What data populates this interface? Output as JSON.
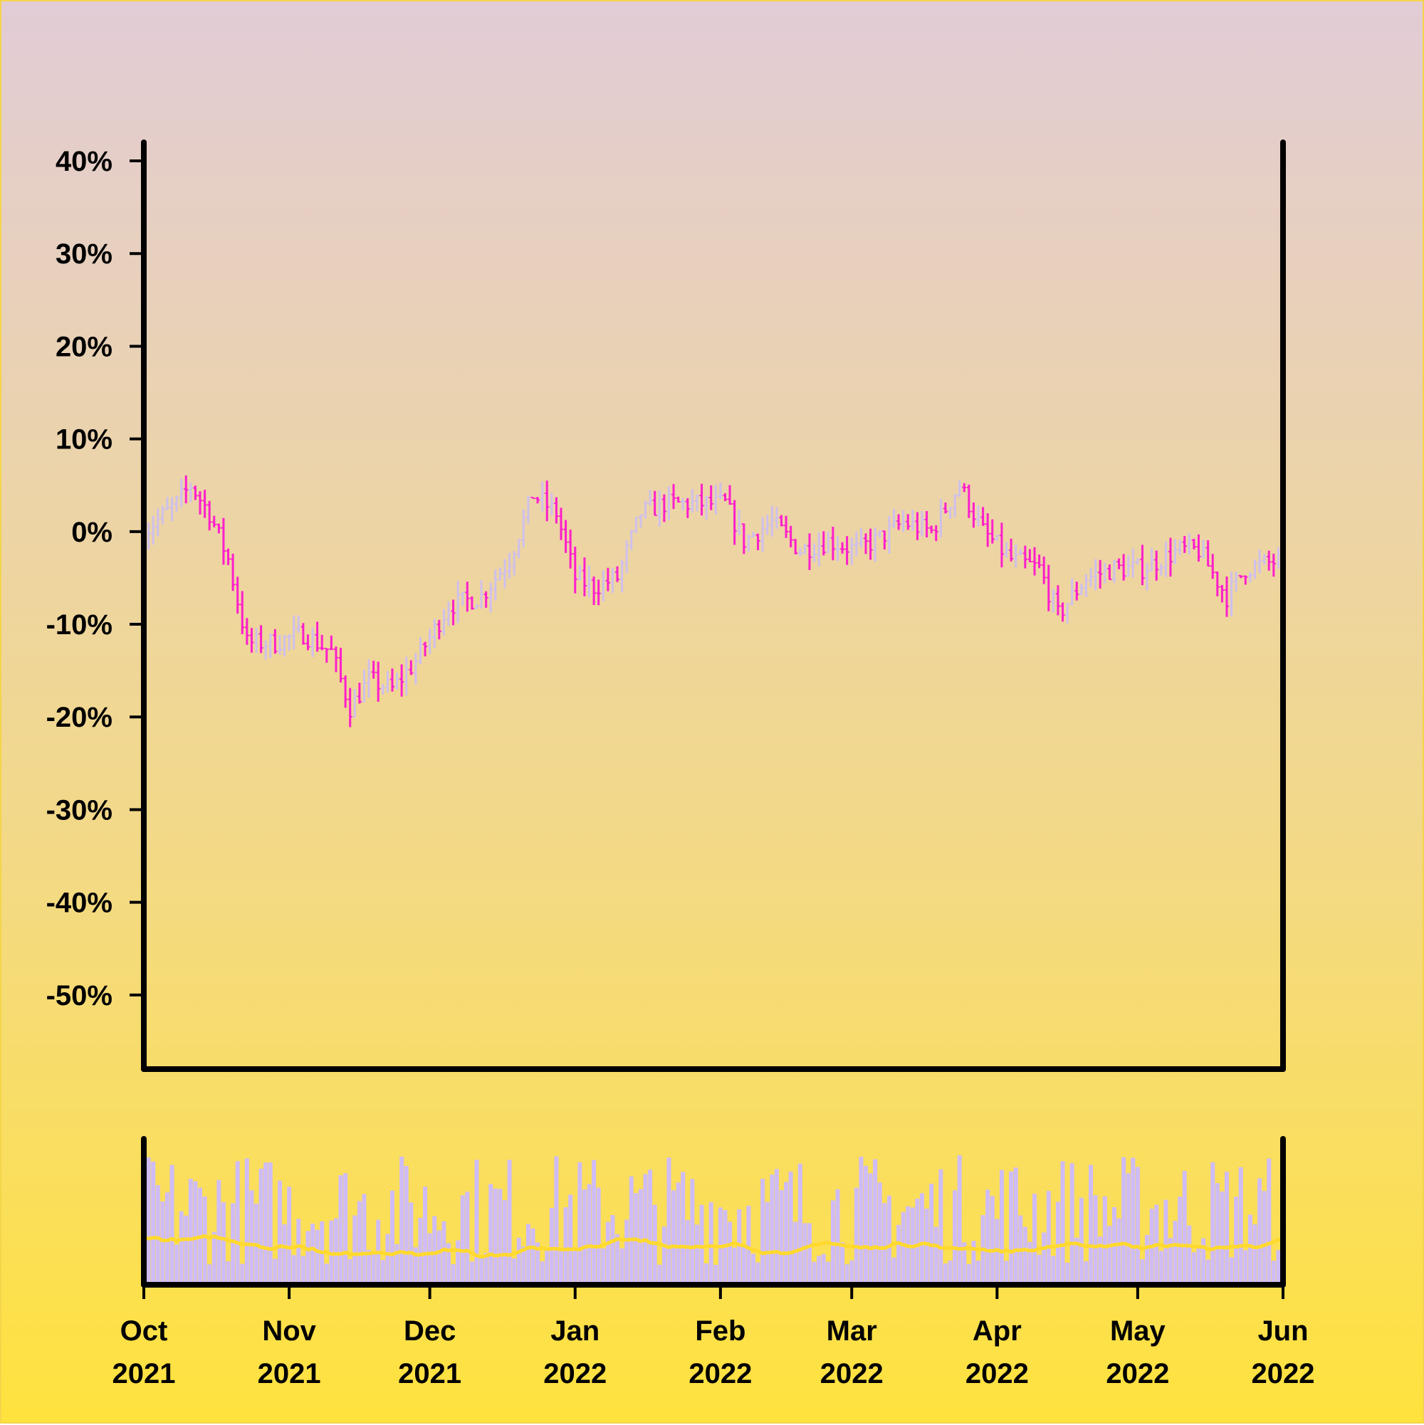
{
  "chart_data": {
    "type": "ohlc",
    "title": "",
    "xlabel": "",
    "ylabel": "",
    "y_unit": "%",
    "ylim": [
      -58,
      42
    ],
    "grid": false,
    "legend": "none",
    "x_range": [
      "2021-10-01",
      "2022-06-01"
    ],
    "y_ticks": [
      {
        "value": 40,
        "label": "40%"
      },
      {
        "value": 30,
        "label": "30%"
      },
      {
        "value": 20,
        "label": "20%"
      },
      {
        "value": 10,
        "label": "10%"
      },
      {
        "value": 0,
        "label": "0%"
      },
      {
        "value": -10,
        "label": "-10%"
      },
      {
        "value": -20,
        "label": "-20%"
      },
      {
        "value": -30,
        "label": "-30%"
      },
      {
        "value": -40,
        "label": "-40%"
      },
      {
        "value": -50,
        "label": "-50%"
      }
    ],
    "x_ticks": [
      {
        "date": "2021-10-01",
        "month": "Oct",
        "year": "2021"
      },
      {
        "date": "2021-11-01",
        "month": "Nov",
        "year": "2021"
      },
      {
        "date": "2021-12-01",
        "month": "Dec",
        "year": "2021"
      },
      {
        "date": "2022-01-01",
        "month": "Jan",
        "year": "2022"
      },
      {
        "date": "2022-02-01",
        "month": "Feb",
        "year": "2022"
      },
      {
        "date": "2022-03-01",
        "month": "Mar",
        "year": "2022"
      },
      {
        "date": "2022-04-01",
        "month": "Apr",
        "year": "2022"
      },
      {
        "date": "2022-05-01",
        "month": "May",
        "year": "2022"
      },
      {
        "date": "2022-06-01",
        "month": "Jun",
        "year": "2022"
      }
    ],
    "close_path": [
      [
        "2021-10-01",
        0
      ],
      [
        "2021-10-08",
        3
      ],
      [
        "2021-10-11",
        5
      ],
      [
        "2021-10-15",
        2
      ],
      [
        "2021-10-19",
        -3
      ],
      [
        "2021-10-23",
        -12
      ],
      [
        "2021-10-29",
        -12
      ],
      [
        "2021-11-04",
        -11
      ],
      [
        "2021-11-10",
        -13
      ],
      [
        "2021-11-14",
        -19
      ],
      [
        "2021-11-18",
        -16
      ],
      [
        "2021-11-23",
        -17
      ],
      [
        "2021-11-28",
        -14
      ],
      [
        "2021-12-05",
        -8
      ],
      [
        "2021-12-12",
        -7
      ],
      [
        "2021-12-18",
        -3
      ],
      [
        "2021-12-23",
        4
      ],
      [
        "2021-12-28",
        2
      ],
      [
        "2022-01-01",
        -5
      ],
      [
        "2022-01-05",
        -6
      ],
      [
        "2022-01-10",
        -5
      ],
      [
        "2022-01-15",
        2
      ],
      [
        "2022-01-20",
        3
      ],
      [
        "2022-01-27",
        3
      ],
      [
        "2022-02-02",
        3
      ],
      [
        "2022-02-06",
        -1
      ],
      [
        "2022-02-12",
        1
      ],
      [
        "2022-02-18",
        -2
      ],
      [
        "2022-02-24",
        -1
      ],
      [
        "2022-03-02",
        -2
      ],
      [
        "2022-03-06",
        -1
      ],
      [
        "2022-03-12",
        1
      ],
      [
        "2022-03-18",
        0
      ],
      [
        "2022-03-24",
        5
      ],
      [
        "2022-03-29",
        0
      ],
      [
        "2022-04-04",
        -3
      ],
      [
        "2022-04-10",
        -4
      ],
      [
        "2022-04-14",
        -9
      ],
      [
        "2022-04-20",
        -5
      ],
      [
        "2022-04-26",
        -4
      ],
      [
        "2022-05-02",
        -4
      ],
      [
        "2022-05-06",
        -3
      ],
      [
        "2022-05-10",
        -2
      ],
      [
        "2022-05-14",
        -2
      ],
      [
        "2022-05-20",
        -7
      ],
      [
        "2022-05-24",
        -4
      ],
      [
        "2022-06-01",
        -3
      ]
    ],
    "series_colors": {
      "down": "#ff1fcb",
      "up": "#cfc0ec",
      "volume": "#cfbcf6",
      "volume_average": "#ffd92e"
    },
    "volume_panel": {
      "type": "bar",
      "average_line": true
    }
  }
}
